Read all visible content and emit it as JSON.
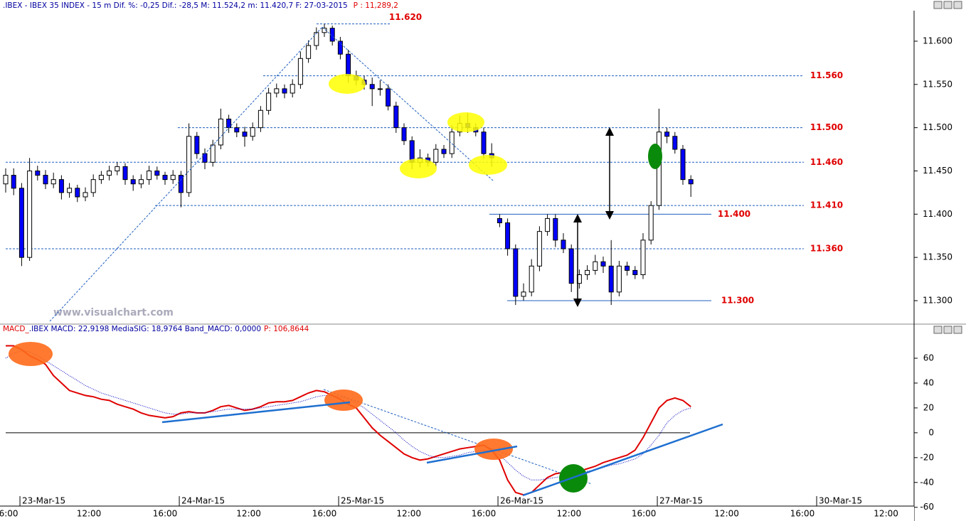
{
  "chart_data": [
    {
      "type": "candlestick",
      "title": ".IBEX - IBEX 35 INDEX -  15 m Dif. %: -0,25 Dif.: -28,5 M: 11.524,2 m: 11.420,7 F: 27-03-2015",
      "last_price_label": "P : 11,289,2",
      "watermark": "www.visualchart.com",
      "x": [
        0,
        1,
        2,
        3,
        4,
        5,
        6,
        7,
        8,
        9,
        10,
        11,
        12,
        13,
        14,
        15,
        16,
        17,
        18,
        19,
        20,
        21,
        22,
        23,
        24,
        25,
        26,
        27,
        28,
        29,
        30,
        31,
        32,
        33,
        34,
        35,
        36,
        37,
        38,
        39,
        40,
        41,
        42,
        43,
        44,
        45,
        46,
        47,
        48,
        49,
        50,
        51,
        52,
        53,
        54,
        55,
        56,
        57,
        58,
        59,
        60,
        61,
        62,
        63,
        64,
        65,
        66,
        67,
        68,
        69,
        70,
        71,
        72,
        73,
        74,
        75,
        76,
        77,
        78,
        79,
        80,
        81,
        82,
        83,
        84,
        85,
        86
      ],
      "open": [
        11435,
        11445,
        11430,
        11350,
        11450,
        11445,
        11435,
        11440,
        11425,
        11430,
        11420,
        11425,
        11440,
        11445,
        11450,
        11455,
        11440,
        11435,
        11440,
        11450,
        11445,
        11440,
        11445,
        11425,
        11490,
        11470,
        11460,
        11480,
        11510,
        11500,
        11495,
        11490,
        11500,
        11520,
        11540,
        11545,
        11540,
        11550,
        11580,
        11595,
        11610,
        11615,
        11600,
        11585,
        11560,
        11555,
        11550,
        11545,
        11545,
        11525,
        11500,
        11485,
        11460,
        11465,
        11460,
        11475,
        11470,
        11495,
        11505,
        11500,
        11495,
        11470,
        11395,
        11390,
        11360,
        11305,
        11310,
        11340,
        11380,
        11395,
        11370,
        11360,
        11320,
        11330,
        11335,
        11345,
        11340,
        11310,
        11340,
        11335,
        11330,
        11370,
        11410,
        11495,
        11490,
        11475,
        11440
      ],
      "high": [
        11453,
        11453,
        11436,
        11465,
        11456,
        11451,
        11448,
        11445,
        11436,
        11434,
        11431,
        11446,
        11450,
        11456,
        11460,
        11459,
        11445,
        11446,
        11456,
        11455,
        11449,
        11451,
        11450,
        11505,
        11495,
        11476,
        11486,
        11522,
        11515,
        11505,
        11501,
        11506,
        11525,
        11546,
        11551,
        11550,
        11556,
        11588,
        11601,
        11616,
        11620,
        11618,
        11605,
        11590,
        11566,
        11560,
        11558,
        11555,
        11550,
        11530,
        11505,
        11490,
        11475,
        11470,
        11481,
        11480,
        11503,
        11514,
        11517,
        11505,
        11500,
        11482,
        11400,
        11395,
        11365,
        11320,
        11348,
        11386,
        11400,
        11400,
        11378,
        11365,
        11336,
        11341,
        11353,
        11351,
        11370,
        11346,
        11345,
        11340,
        11378,
        11415,
        11522,
        11500,
        11495,
        11480,
        11445
      ],
      "low": [
        11425,
        11422,
        11340,
        11346,
        11439,
        11429,
        11430,
        11417,
        11419,
        11414,
        11415,
        11420,
        11435,
        11439,
        11445,
        11434,
        11427,
        11430,
        11434,
        11440,
        11434,
        11435,
        11408,
        11420,
        11464,
        11452,
        11455,
        11475,
        11494,
        11489,
        11478,
        11485,
        11495,
        11515,
        11535,
        11534,
        11535,
        11545,
        11575,
        11590,
        11605,
        11595,
        11579,
        11552,
        11549,
        11544,
        11525,
        11537,
        11520,
        11494,
        11480,
        11452,
        11454,
        11455,
        11454,
        11465,
        11465,
        11490,
        11494,
        11490,
        11464,
        11455,
        11385,
        11352,
        11295,
        11300,
        11305,
        11334,
        11375,
        11362,
        11355,
        11310,
        11314,
        11324,
        11330,
        11332,
        11295,
        11305,
        11329,
        11325,
        11325,
        11365,
        11405,
        11482,
        11470,
        11434,
        11420
      ],
      "close": [
        11445,
        11430,
        11350,
        11450,
        11445,
        11435,
        11440,
        11425,
        11430,
        11420,
        11425,
        11440,
        11445,
        11450,
        11455,
        11440,
        11435,
        11440,
        11450,
        11445,
        11440,
        11445,
        11425,
        11490,
        11470,
        11460,
        11480,
        11510,
        11500,
        11495,
        11490,
        11500,
        11520,
        11540,
        11545,
        11540,
        11550,
        11580,
        11595,
        11610,
        11615,
        11600,
        11585,
        11560,
        11555,
        11550,
        11545,
        11545,
        11525,
        11500,
        11485,
        11460,
        11465,
        11460,
        11475,
        11470,
        11495,
        11505,
        11500,
        11495,
        11470,
        11465,
        11390,
        11360,
        11305,
        11310,
        11340,
        11380,
        11395,
        11370,
        11360,
        11320,
        11330,
        11335,
        11345,
        11340,
        11310,
        11340,
        11335,
        11330,
        11370,
        11410,
        11495,
        11490,
        11475,
        11440,
        11435
      ],
      "up_color": "#ffffff",
      "down_color": "#0000ff",
      "xlim": [
        -0.714,
        113.571
      ],
      "ylim": [
        11273.7,
        11635.3
      ],
      "yticks": [
        {
          "value": 11300,
          "label": "11.300"
        },
        {
          "value": 11350,
          "label": "11.350"
        },
        {
          "value": 11400,
          "label": "11.400"
        },
        {
          "value": 11450,
          "label": "11.450"
        },
        {
          "value": 11500,
          "label": "11.500"
        },
        {
          "value": 11550,
          "label": "11.550"
        },
        {
          "value": 11600,
          "label": "11.600"
        }
      ],
      "levels": [
        {
          "value": 11620,
          "label": "11.620",
          "style": "dashed"
        },
        {
          "value": 11560,
          "label": "11.560",
          "style": "dashed"
        },
        {
          "value": 11500,
          "label": "11.500",
          "style": "dashed"
        },
        {
          "value": 11460,
          "label": "11.460",
          "style": "dashed"
        },
        {
          "value": 11410,
          "label": "11.410",
          "style": "dashed"
        },
        {
          "value": 11400,
          "label": "11.400",
          "style": "solid"
        },
        {
          "value": 11360,
          "label": "11.360",
          "style": "dashed"
        },
        {
          "value": 11300,
          "label": "11.300",
          "style": "solid"
        }
      ]
    },
    {
      "type": "line",
      "title_prefix": "MACD_",
      "title": ".IBEX MACD: 22,9198 MediaSIG: 18,9764 Band_MACD: 0,0000",
      "last_value_label": "P: 106,8644",
      "x": [
        0,
        1,
        2,
        3,
        4,
        5,
        6,
        7,
        8,
        9,
        10,
        11,
        12,
        13,
        14,
        15,
        16,
        17,
        18,
        19,
        20,
        21,
        22,
        23,
        24,
        25,
        26,
        27,
        28,
        29,
        30,
        31,
        32,
        33,
        34,
        35,
        36,
        37,
        38,
        39,
        40,
        41,
        42,
        43,
        44,
        45,
        46,
        47,
        48,
        49,
        50,
        51,
        52,
        53,
        54,
        55,
        56,
        57,
        58,
        59,
        60,
        61,
        62,
        63,
        64,
        65,
        66,
        67,
        68,
        69,
        70,
        71,
        72,
        73,
        74,
        75,
        76,
        77,
        78,
        79,
        80,
        81,
        82,
        83,
        84,
        85,
        86
      ],
      "series": [
        {
          "color": "#e00000",
          "style": "solid",
          "values": [
            70,
            70,
            67,
            62,
            59,
            55,
            46,
            40,
            34,
            32,
            30,
            29,
            27,
            26,
            23,
            21,
            19,
            16,
            14,
            13,
            12,
            13,
            16,
            17,
            16,
            16,
            18,
            21,
            22,
            20,
            18,
            19,
            21,
            24,
            25,
            25,
            26,
            29,
            32,
            34,
            33,
            30,
            27,
            23,
            20,
            12,
            4,
            -2,
            -7,
            -12,
            -17,
            -20,
            -22,
            -21,
            -19,
            -17,
            -15,
            -13,
            -12,
            -11,
            -10,
            -14,
            -22,
            -38,
            -48,
            -50,
            -48,
            -42,
            -36,
            -33,
            -32,
            -32,
            -31,
            -29,
            -27,
            -24,
            -22,
            -20,
            -18,
            -14,
            -4,
            8,
            20,
            26,
            28,
            26,
            21
          ]
        },
        {
          "color": "#0000c0",
          "style": "dotted",
          "values": [
            60,
            64,
            66,
            65,
            62,
            58,
            54,
            50,
            46,
            42,
            38,
            35,
            32,
            30,
            28,
            26,
            24,
            22,
            20,
            18,
            16,
            15,
            15,
            16,
            16,
            16,
            17,
            18,
            19,
            19,
            19,
            19,
            20,
            21,
            22,
            23,
            24,
            25,
            27,
            29,
            30,
            30,
            29,
            27,
            24,
            20,
            15,
            10,
            5,
            0,
            -6,
            -11,
            -15,
            -18,
            -20,
            -20,
            -19,
            -18,
            -16,
            -15,
            -14,
            -15,
            -18,
            -24,
            -30,
            -35,
            -38,
            -38,
            -37,
            -36,
            -35,
            -34,
            -33,
            -31,
            -30,
            -28,
            -26,
            -25,
            -23,
            -21,
            -17,
            -10,
            -2,
            8,
            14,
            18,
            20
          ]
        }
      ],
      "xlim": [
        -0.714,
        113.571
      ],
      "ylim": [
        -61.3,
        78.3
      ],
      "yticks": [
        -60,
        -40,
        -20,
        0,
        20,
        40,
        60
      ],
      "xticks": [
        {
          "value": 0.36,
          "label": "6:00"
        },
        {
          "value": 10.45,
          "label": "12:00"
        },
        {
          "value": 20.0,
          "label": "16:00"
        },
        {
          "value": 30.5,
          "label": "12:00"
        },
        {
          "value": 40.0,
          "label": "16:00"
        },
        {
          "value": 50.6,
          "label": "12:00"
        },
        {
          "value": 60.0,
          "label": "16:00"
        },
        {
          "value": 70.7,
          "label": "12:00"
        },
        {
          "value": 80.1,
          "label": "16:00"
        },
        {
          "value": 90.5,
          "label": "12:00"
        },
        {
          "value": 100.0,
          "label": "16:00"
        },
        {
          "value": 110.5,
          "label": "12:00"
        }
      ],
      "date_ticks": [
        {
          "value": 1.79,
          "label": "23-Mar-15"
        },
        {
          "value": 21.79,
          "label": "24-Mar-15"
        },
        {
          "value": 41.79,
          "label": "25-Mar-15"
        },
        {
          "value": 61.79,
          "label": "26-Mar-15"
        },
        {
          "value": 81.79,
          "label": "27-Mar-15"
        },
        {
          "value": 101.79,
          "label": "30-Mar-15"
        }
      ]
    }
  ]
}
